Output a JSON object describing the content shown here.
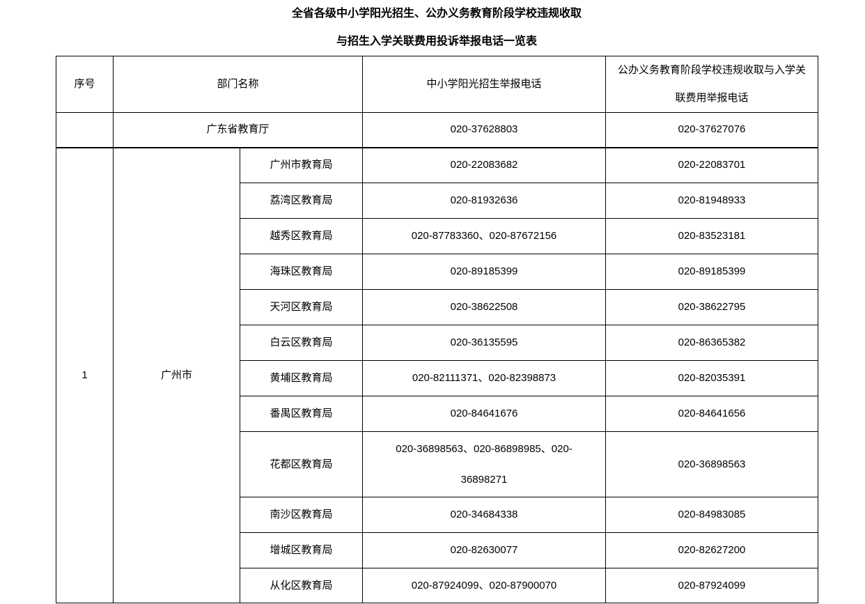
{
  "page": {
    "title_line1": "全省各级中小学阳光招生、公办义务教育阶段学校违规收取",
    "title_line2": "与招生入学关联费用投诉举报电话一览表"
  },
  "table": {
    "headers": {
      "index": "序号",
      "department": "部门名称",
      "phone_enrollment": "中小学阳光招生举报电话",
      "phone_fees": "公办义务教育阶段学校违规收取与入学关联费用举报电话"
    },
    "province_row": {
      "index": "",
      "department": "广东省教育厅",
      "phone_enrollment": "020-37628803",
      "phone_fees": "020-37627076"
    },
    "city_group": {
      "index": "1",
      "city": "广州市",
      "rows": [
        {
          "department": "广州市教育局",
          "phone_enrollment": "020-22083682",
          "phone_fees": "020-22083701"
        },
        {
          "department": "荔湾区教育局",
          "phone_enrollment": "020-81932636",
          "phone_fees": "020-81948933"
        },
        {
          "department": "越秀区教育局",
          "phone_enrollment": "020-87783360、020-87672156",
          "phone_fees": "020-83523181"
        },
        {
          "department": "海珠区教育局",
          "phone_enrollment": "020-89185399",
          "phone_fees": "020-89185399"
        },
        {
          "department": "天河区教育局",
          "phone_enrollment": "020-38622508",
          "phone_fees": "020-38622795"
        },
        {
          "department": "白云区教育局",
          "phone_enrollment": "020-36135595",
          "phone_fees": "020-86365382"
        },
        {
          "department": "黄埔区教育局",
          "phone_enrollment": "020-82111371、020-82398873",
          "phone_fees": "020-82035391"
        },
        {
          "department": "番禺区教育局",
          "phone_enrollment": "020-84641676",
          "phone_fees": "020-84641656"
        },
        {
          "department": "花都区教育局",
          "phone_enrollment": "020-36898563、020-86898985、020-36898271",
          "phone_fees": "020-36898563"
        },
        {
          "department": "南沙区教育局",
          "phone_enrollment": "020-34684338",
          "phone_fees": "020-84983085"
        },
        {
          "department": "增城区教育局",
          "phone_enrollment": "020-82630077",
          "phone_fees": "020-82627200"
        },
        {
          "department": "从化区教育局",
          "phone_enrollment": "020-87924099、020-87900070",
          "phone_fees": "020-87924099"
        }
      ]
    }
  },
  "colors": {
    "text": "#000000",
    "border": "#000000",
    "background": "#ffffff"
  }
}
